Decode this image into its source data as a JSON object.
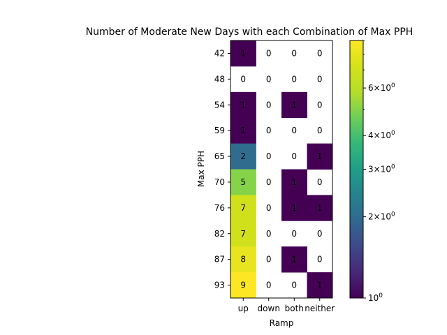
{
  "chart_data": {
    "type": "heatmap",
    "title": "Number of Moderate New Days with each Combination of Max PPH",
    "xlabel": "Ramp",
    "ylabel": "Max PPH",
    "x_categories": [
      "up",
      "down",
      "both",
      "neither"
    ],
    "y_categories": [
      "42",
      "48",
      "54",
      "59",
      "65",
      "70",
      "76",
      "82",
      "87",
      "93"
    ],
    "values": [
      [
        1,
        0,
        0,
        0
      ],
      [
        0,
        0,
        0,
        0
      ],
      [
        1,
        0,
        1,
        0
      ],
      [
        1,
        0,
        0,
        0
      ],
      [
        2,
        0,
        0,
        1
      ],
      [
        5,
        0,
        1,
        0
      ],
      [
        7,
        0,
        1,
        1
      ],
      [
        7,
        0,
        0,
        0
      ],
      [
        8,
        0,
        1,
        0
      ],
      [
        9,
        0,
        0,
        1
      ]
    ],
    "colorscale": "viridis",
    "color_scale_type": "log",
    "colorbar": {
      "range": [
        1,
        9
      ],
      "tick_labels": [
        {
          "base": "10",
          "exp": "0",
          "value": 1
        },
        {
          "base": "2×10",
          "exp": "0",
          "value": 2
        },
        {
          "base": "3×10",
          "exp": "0",
          "value": 3
        },
        {
          "base": "4×10",
          "exp": "0",
          "value": 4
        },
        {
          "base": "6×10",
          "exp": "0",
          "value": 6
        }
      ],
      "minor_tick_values": [
        5,
        7,
        8,
        9
      ]
    },
    "zero_cells": "blank"
  }
}
